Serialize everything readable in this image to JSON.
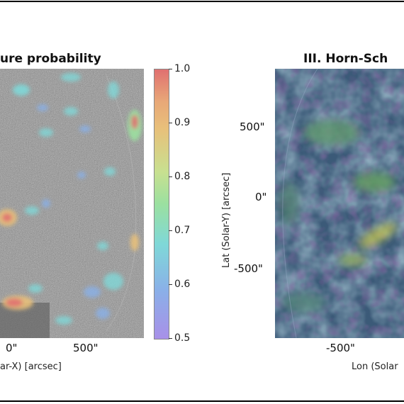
{
  "panels": {
    "left": {
      "title": "ure probability",
      "x_ticks": [
        "0\"",
        "500\""
      ],
      "x_label": "ar-X) [arcsec]"
    },
    "right": {
      "title": "III. Horn-Sch",
      "y_ticks": [
        "500\"",
        "0\"",
        "-500\""
      ],
      "x_ticks": [
        "-500\""
      ],
      "y_label": "Lat (Solar-Y) [arcsec]",
      "x_label": "Lon (Solar"
    }
  },
  "colorbar": {
    "ticks": [
      "1.0",
      "0.9",
      "0.8",
      "0.7",
      "0.6",
      "0.5"
    ],
    "colors": [
      "#e07070",
      "#e8c07a",
      "#9be0a0",
      "#7fd8d8",
      "#8ab0e8",
      "#a890e8"
    ]
  }
}
